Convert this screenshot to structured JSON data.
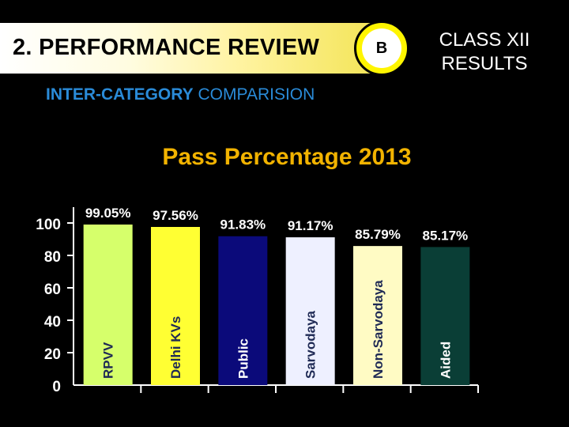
{
  "header": {
    "title": "2. PERFORMANCE REVIEW",
    "badge": "B",
    "right_line1": "CLASS XII",
    "right_line2": "RESULTS",
    "subtitle_bold": "INTER-CATEGORY",
    "subtitle_rest": " COMPARISION"
  },
  "colors": {
    "title": "#f2b300",
    "axis": "#ffffff",
    "subtitle": "#2a8bd8"
  },
  "chart_data": {
    "type": "bar",
    "title": "Pass Percentage 2013",
    "categories": [
      "RPVV",
      "Delhi KVs",
      "Public",
      "Sarvodaya",
      "Non-Sarvodaya",
      "Aided"
    ],
    "values": [
      99.05,
      97.56,
      91.83,
      91.17,
      85.79,
      85.17
    ],
    "data_labels": [
      "99.05%",
      "97.56%",
      "91.83%",
      "91.17%",
      "85.79%",
      "85.17%"
    ],
    "bar_colors": [
      "#d6ff6b",
      "#ffff33",
      "#0b0a7a",
      "#eef0ff",
      "#fffbc4",
      "#0a3e36"
    ],
    "label_colors": [
      "#1f2a55",
      "#1f2a55",
      "#ffffff",
      "#1f2a55",
      "#1f2a55",
      "#ffffff"
    ],
    "yticks": [
      0,
      20,
      40,
      60,
      80,
      100
    ],
    "ylim": [
      0,
      100
    ],
    "xlabel": "",
    "ylabel": ""
  }
}
